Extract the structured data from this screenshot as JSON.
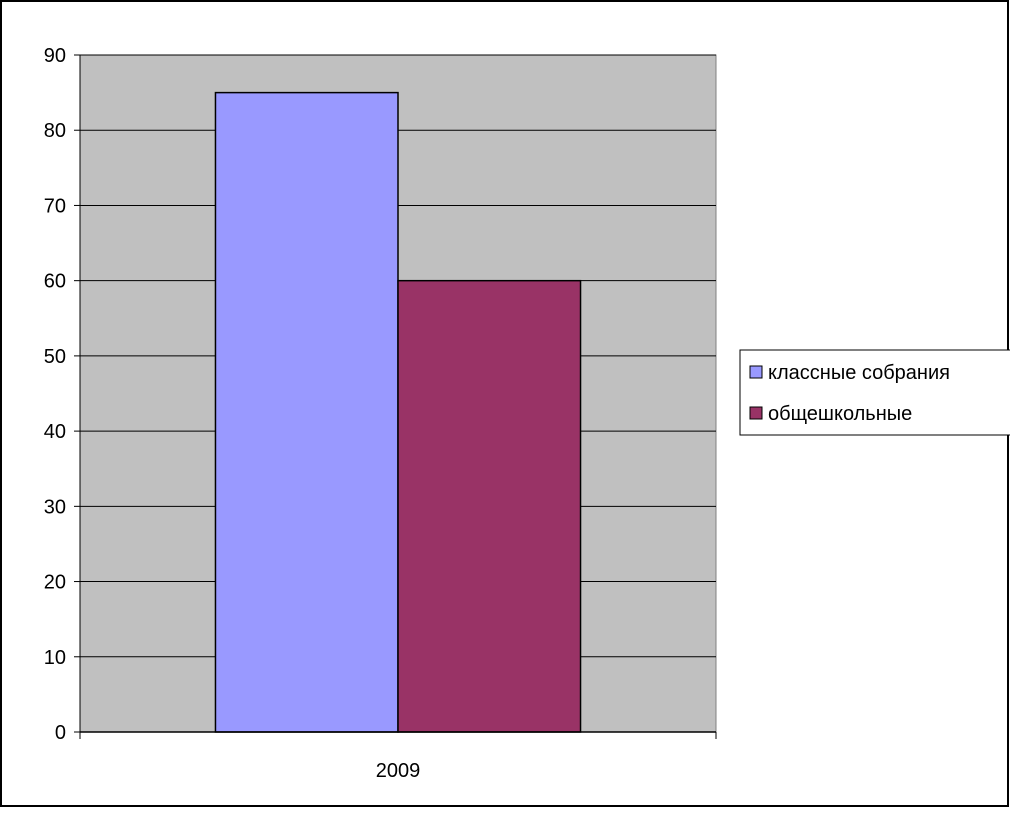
{
  "chart_data": {
    "type": "bar",
    "title": "",
    "xlabel": "",
    "ylabel": "",
    "categories": [
      "2009"
    ],
    "ylim": [
      0,
      90
    ],
    "yticks": [
      0,
      10,
      20,
      30,
      40,
      50,
      60,
      70,
      80,
      90
    ],
    "grid": true,
    "legend_position": "right",
    "plot_background": "#c0c0c0",
    "series": [
      {
        "name": "классные собрания",
        "values": [
          85
        ],
        "color": "#9999ff"
      },
      {
        "name": "общешкольные",
        "values": [
          60
        ],
        "color": "#993366"
      }
    ]
  }
}
